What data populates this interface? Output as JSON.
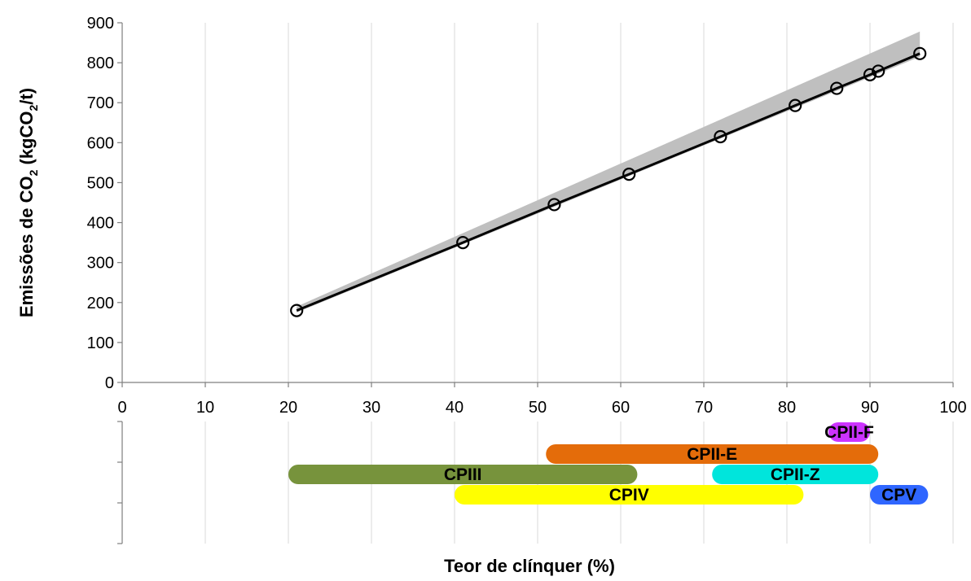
{
  "chart_data": {
    "type": "line",
    "title": "",
    "xlabel": "Teor de clínquer (%)",
    "ylabel": {
      "prefix": "Emissões de CO",
      "sub": "2",
      "suffix": " (kgCO",
      "sub2": "2",
      "end": "/t)"
    },
    "xlim": [
      0,
      100
    ],
    "ylim": [
      0,
      900
    ],
    "x_ticks": [
      0,
      10,
      20,
      30,
      40,
      50,
      60,
      70,
      80,
      90,
      100
    ],
    "y_ticks": [
      0,
      100,
      200,
      300,
      400,
      500,
      600,
      700,
      800,
      900
    ],
    "grid": "vertical",
    "series": [
      {
        "x": [
          21,
          41,
          52,
          61,
          72,
          81,
          86,
          90,
          91,
          96
        ],
        "y": [
          180,
          350,
          445,
          521,
          615,
          693,
          736,
          770,
          779,
          823
        ],
        "color": "#000000",
        "marker": "open-circle"
      }
    ],
    "band": {
      "x": [
        21,
        96
      ],
      "y_low": [
        175,
        815
      ],
      "y_high": [
        190,
        878
      ],
      "color": "#bfbfbf"
    },
    "ranges": [
      {
        "label": "CPII-F",
        "start": 85,
        "end": 90,
        "row": 0,
        "color": "#cc33ff"
      },
      {
        "label": "CPII-E",
        "start": 51,
        "end": 91,
        "row": 1,
        "color": "#e46c0a"
      },
      {
        "label": "CPIII",
        "start": 20,
        "end": 62,
        "row": 2,
        "color": "#77933c"
      },
      {
        "label": "CPII-Z",
        "start": 71,
        "end": 91,
        "row": 2,
        "color": "#00e5dc"
      },
      {
        "label": "CPIV",
        "start": 40,
        "end": 82,
        "row": 3,
        "color": "#ffff00"
      },
      {
        "label": "CPV",
        "start": 90,
        "end": 97,
        "row": 3,
        "color": "#2f66ff"
      }
    ]
  }
}
